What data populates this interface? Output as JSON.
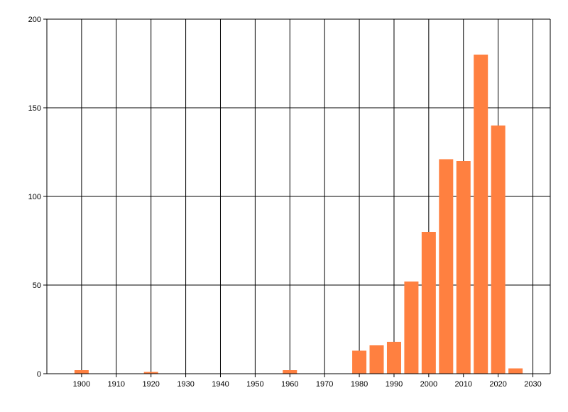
{
  "chart_data": {
    "type": "bar",
    "title": "",
    "xlabel": "",
    "ylabel": "",
    "xlim": [
      1890,
      2035
    ],
    "ylim": [
      0,
      200
    ],
    "x_ticks": [
      1900,
      1910,
      1920,
      1930,
      1940,
      1950,
      1960,
      1970,
      1980,
      1990,
      2000,
      2010,
      2020,
      2030
    ],
    "y_ticks": [
      0,
      50,
      100,
      150,
      200
    ],
    "grid": true,
    "legend": "none",
    "bar_color": "#FF8040",
    "grid_color": "#000000",
    "series": [
      {
        "x": [
          1900,
          1920,
          1960,
          1980,
          1985,
          1990,
          1995,
          2000,
          2005,
          2010,
          2015,
          2020,
          2025
        ],
        "values": [
          2,
          1,
          2,
          13,
          16,
          18,
          52,
          80,
          121,
          120,
          180,
          140,
          3
        ]
      }
    ]
  }
}
